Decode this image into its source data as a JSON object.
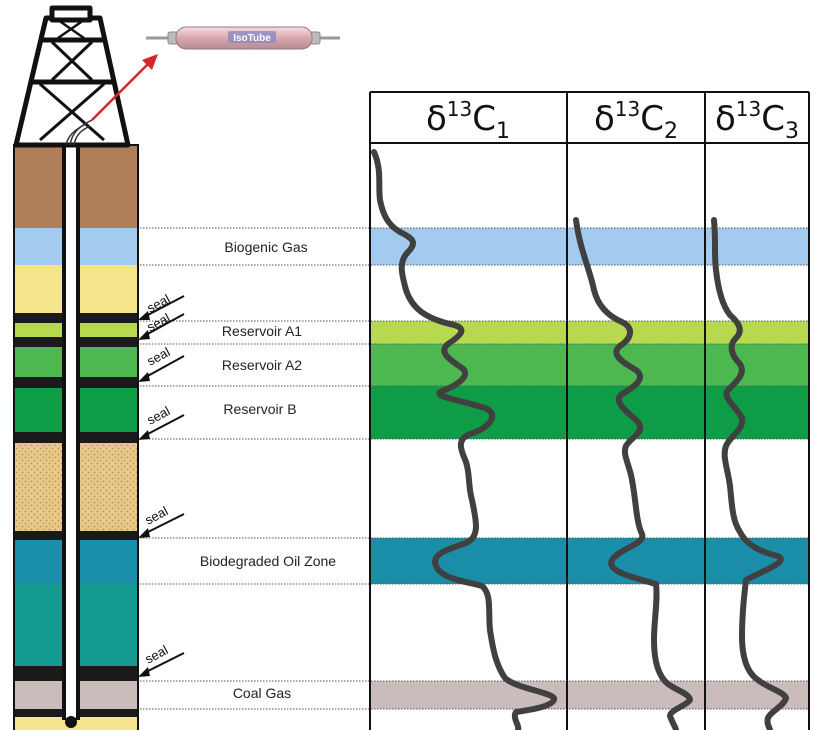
{
  "sampler": {
    "label": "IsoTube"
  },
  "columns": [
    {
      "symbol": "δ",
      "sup": "13",
      "letter": "C",
      "sub": "1"
    },
    {
      "symbol": "δ",
      "sup": "13",
      "letter": "C",
      "sub": "2"
    },
    {
      "symbol": "δ",
      "sup": "13",
      "letter": "C",
      "sub": "3"
    }
  ],
  "zones": [
    {
      "name": "Biogenic Gas",
      "color": "#a2cbef"
    },
    {
      "name": "Reservoir A1",
      "color": "#b7d94f"
    },
    {
      "name": "Reservoir A2",
      "color": "#4cb84f"
    },
    {
      "name": "Reservoir B",
      "color": "#0f9c47"
    },
    {
      "name": "Biodegraded Oil Zone",
      "color": "#1a8ea8"
    },
    {
      "name": "Coal Gas",
      "color": "#cbbcbc"
    }
  ],
  "seals": [
    "seal",
    "seal",
    "seal",
    "seal",
    "seal",
    "seal"
  ],
  "colors": {
    "overburden": "#b07f5a",
    "sand_yellow": "#f5e58a",
    "sandstone": "#e8c98a",
    "teal_bed": "#139b92",
    "seal_bed": "#1a1a1a",
    "curve": "#404040",
    "arrow": "#d8242a"
  }
}
